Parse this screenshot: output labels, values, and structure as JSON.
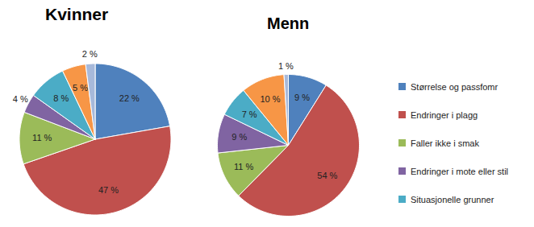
{
  "chart_data": [
    {
      "type": "pie",
      "title": "Kvinner",
      "categories": [
        "Størrelse og passfomr",
        "Endringer i plagg",
        "Faller ikke i smak",
        "Endringer i mote eller stil",
        "Situasjonelle grunner",
        null,
        null
      ],
      "values": [
        22,
        47,
        11,
        4,
        8,
        5,
        2
      ],
      "value_labels": [
        "22 %",
        "47 %",
        "11 %",
        "4 %",
        "8 %",
        "5 %",
        "2 %"
      ],
      "colors": [
        "#4f81bd",
        "#c0504d",
        "#9bbb59",
        "#8064a2",
        "#4bacc6",
        "#f79646",
        "#a7b9da"
      ],
      "data_labels": true
    },
    {
      "type": "pie",
      "title": "Menn",
      "categories": [
        "Størrelse og passfomr",
        "Endringer i plagg",
        "Faller ikke i smak",
        "Endringer i mote eller stil",
        "Situasjonelle grunner",
        null,
        null
      ],
      "values": [
        9,
        54,
        11,
        9,
        7,
        10,
        1
      ],
      "value_labels": [
        "9 %",
        "54 %",
        "11 %",
        "9 %",
        "7 %",
        "10 %",
        "1 %"
      ],
      "colors": [
        "#4f81bd",
        "#c0504d",
        "#9bbb59",
        "#8064a2",
        "#4bacc6",
        "#f79646",
        "#a7b9da"
      ],
      "data_labels": true,
      "legend": "right"
    }
  ]
}
